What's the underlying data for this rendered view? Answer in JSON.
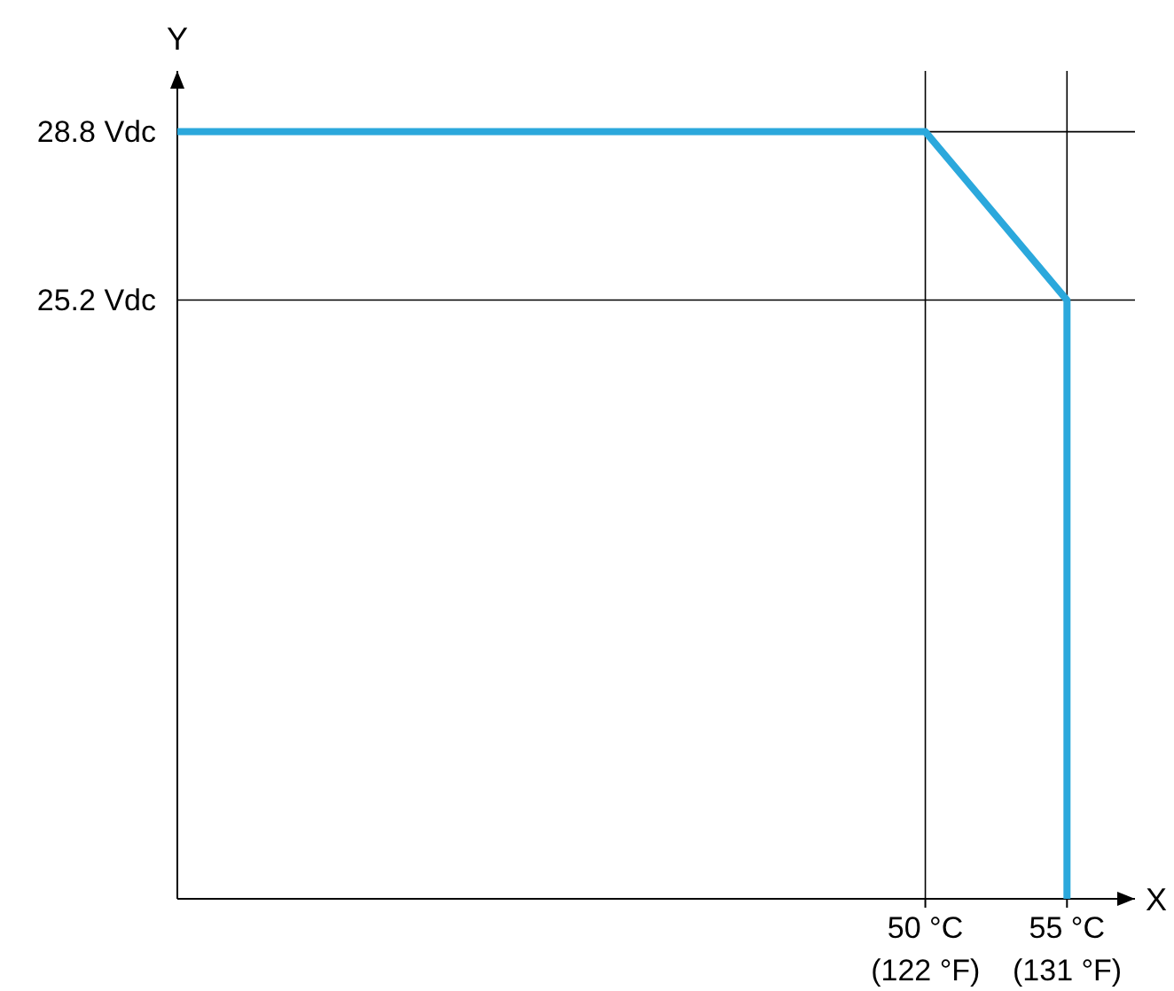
{
  "chart_data": {
    "type": "line",
    "xlabel": "X",
    "ylabel": "Y",
    "xlim": [
      23.6,
      57.4
    ],
    "ylim": [
      12.4,
      30.1
    ],
    "xticks": [
      {
        "value": 50,
        "label": "50 °C"
      },
      {
        "value": 55,
        "label": "55 °C"
      }
    ],
    "x2lim": [
      74.5,
      135.3
    ],
    "x2ticks": [
      {
        "value": 122,
        "label": "(122 °F)"
      },
      {
        "value": 131,
        "label": "(131 °F)"
      }
    ],
    "yticks": [
      {
        "value": 25.2,
        "label": "25.2 Vdc"
      },
      {
        "value": 28.8,
        "label": "28.8 Vdc"
      }
    ],
    "grid": true,
    "series": [
      {
        "color": "#2ba8dc",
        "x": [
          23.6,
          50,
          55,
          55
        ],
        "values": [
          28.8,
          28.8,
          25.2,
          12.4
        ]
      }
    ]
  }
}
